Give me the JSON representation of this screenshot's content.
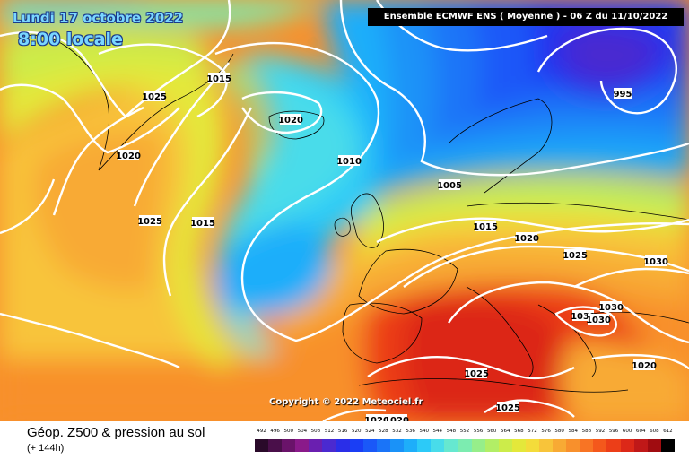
{
  "header": {
    "date": "Lundi 17 octobre 2022",
    "time": "8:00 locale",
    "run": "Ensemble ECMWF ENS  ( Moyenne )  - 06 Z du 11/10/2022"
  },
  "copyright": "Copyright © 2022 Meteociel.fr",
  "footer": {
    "title": "Géop. Z500 & pression au sol",
    "subtitle": "(+ 144h)"
  },
  "legend": {
    "levels": [
      "492",
      "496",
      "500",
      "504",
      "508",
      "512",
      "516",
      "520",
      "524",
      "528",
      "532",
      "536",
      "540",
      "544",
      "548",
      "552",
      "556",
      "560",
      "564",
      "568",
      "572",
      "576",
      "580",
      "584",
      "588",
      "592",
      "596",
      "600",
      "604",
      "608",
      "612"
    ],
    "colors": [
      "#2a0a2a",
      "#4a0f4a",
      "#6a136a",
      "#8a1a8a",
      "#6a1fb0",
      "#4a2ad0",
      "#2a2ee8",
      "#1a3ef5",
      "#1a58f8",
      "#1a74f8",
      "#1a92f8",
      "#1eaefa",
      "#2ccaf8",
      "#48dcea",
      "#66e8d0",
      "#7cecb0",
      "#96ee8a",
      "#b2ee66",
      "#ccec4a",
      "#e4e83a",
      "#f4dc3a",
      "#f8c43a",
      "#f8aa34",
      "#f8902c",
      "#f87424",
      "#f4581c",
      "#ec3e18",
      "#dc2818",
      "#c01818",
      "#a00c10",
      "#000000"
    ]
  },
  "isobars": [
    {
      "id": "isobar-1025-greenland",
      "value": "1025"
    },
    {
      "id": "isobar-1015-greenland",
      "value": "1015"
    },
    {
      "id": "isobar-1020-iceland",
      "value": "1020"
    },
    {
      "id": "isobar-1020-west",
      "value": "1020"
    },
    {
      "id": "isobar-1010-atlantic",
      "value": "1010"
    },
    {
      "id": "isobar-1025-atlantic",
      "value": "1025"
    },
    {
      "id": "isobar-1015-atlantic",
      "value": "1015"
    },
    {
      "id": "isobar-995-scandinavia",
      "value": "995"
    },
    {
      "id": "isobar-1005-northsea",
      "value": "1005"
    },
    {
      "id": "isobar-1015-central-europe",
      "value": "1015"
    },
    {
      "id": "isobar-1020-central-europe",
      "value": "1020"
    },
    {
      "id": "isobar-1025-balkans",
      "value": "1025"
    },
    {
      "id": "isobar-1030-east",
      "value": "1030"
    },
    {
      "id": "isobar-1030-greece",
      "value": "1030"
    },
    {
      "id": "isobar-1030-aegean",
      "value": "1030"
    },
    {
      "id": "isobar-1030-turkey",
      "value": "1030"
    },
    {
      "id": "isobar-1020-middle-east",
      "value": "1020"
    },
    {
      "id": "isobar-1025-mediterranean",
      "value": "1025"
    },
    {
      "id": "isobar-1025-libya",
      "value": "1025"
    },
    {
      "id": "isobar-1020-africa",
      "value": "1020"
    },
    {
      "id": "isobar-1020-africa-2",
      "value": "1020"
    }
  ]
}
